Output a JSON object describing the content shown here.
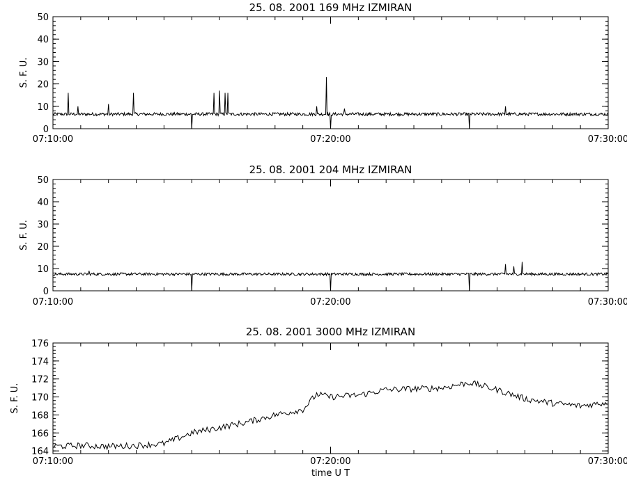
{
  "chart_data": [
    {
      "type": "line",
      "title": "25.  08.  2001    169  MHz    IZMIRAN",
      "ylabel": "S. F. U.",
      "xlabel": "",
      "ylim": [
        0,
        50
      ],
      "yticks": [
        "0",
        "10",
        "20",
        "30",
        "40",
        "50"
      ],
      "xticks": [
        "07:10:00",
        "07:20:00",
        "07:30:00"
      ],
      "xlim_minutes": [
        0,
        20
      ],
      "baseline": 6.5,
      "noise": 0.7,
      "series": [
        {
          "x_minutes": [
            0.55,
            0.9,
            2.0,
            2.9,
            5.0,
            5.8,
            6.0,
            6.2,
            6.3,
            9.5,
            9.85,
            10.0,
            10.5,
            15.0,
            16.3
          ],
          "values": [
            16,
            10,
            11,
            16,
            0,
            16,
            17,
            16,
            16,
            10,
            23,
            0,
            9,
            0,
            10
          ]
        }
      ]
    },
    {
      "type": "line",
      "title": "25.  08.  2001    204  MHz    IZMIRAN",
      "ylabel": "S. F. U.",
      "xlabel": "",
      "ylim": [
        0,
        50
      ],
      "yticks": [
        "0",
        "10",
        "20",
        "30",
        "40",
        "50"
      ],
      "xticks": [
        "07:10:00",
        "07:20:00",
        "07:30:00"
      ],
      "xlim_minutes": [
        0,
        20
      ],
      "baseline": 7.5,
      "noise": 0.6,
      "series": [
        {
          "x_minutes": [
            1.3,
            5.0,
            10.0,
            15.0,
            16.3,
            16.6,
            16.9
          ],
          "values": [
            9,
            0,
            0,
            0,
            12,
            11,
            13
          ]
        }
      ]
    },
    {
      "type": "line",
      "title": "25.  08.  2001    3000  MHz    IZMIRAN",
      "ylabel": "S. F. U.",
      "xlabel": "time   U T",
      "ylim": [
        163.7,
        176
      ],
      "yticks": [
        "164",
        "166",
        "168",
        "170",
        "172",
        "174",
        "176"
      ],
      "xticks": [
        "07:10:00",
        "07:20:00",
        "07:30:00"
      ],
      "xlim_minutes": [
        0,
        20
      ],
      "noise": 0.35,
      "series": [
        {
          "x_minutes": [
            0,
            1,
            2,
            3,
            4,
            5,
            6,
            7,
            8,
            9,
            9.5,
            10,
            11,
            12,
            13,
            14,
            15,
            16,
            17,
            18,
            19,
            20
          ],
          "values": [
            164.5,
            164.6,
            164.5,
            164.6,
            164.8,
            166.0,
            166.6,
            167.2,
            168.0,
            168.6,
            170.3,
            170.0,
            170.2,
            170.8,
            170.9,
            171.0,
            171.6,
            170.8,
            169.8,
            169.3,
            169.0,
            169.4
          ]
        }
      ]
    }
  ]
}
